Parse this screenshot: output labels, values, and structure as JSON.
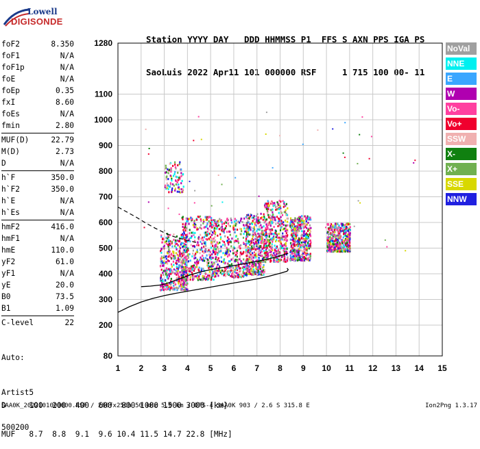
{
  "logo": {
    "line1": "Lowell",
    "line2": "DIGISONDE"
  },
  "header": {
    "row1": "Station YYYY DAY   DDD HHMMSS P1  FFS S AXN PPS IGA PS",
    "row2": "SaoLuis 2022 Apr11 101 000000 RSF     1 715 100 00- 11"
  },
  "params": [
    {
      "k": "foF2",
      "v": "8.350"
    },
    {
      "k": "foF1",
      "v": "N/A"
    },
    {
      "k": "foF1p",
      "v": "N/A"
    },
    {
      "k": "foE",
      "v": "N/A"
    },
    {
      "k": "foEp",
      "v": "0.35"
    },
    {
      "k": "fxI",
      "v": "8.60"
    },
    {
      "k": "foEs",
      "v": "N/A"
    },
    {
      "k": "fmin",
      "v": "2.80"
    },
    {
      "k": "MUF(D)",
      "v": "22.79",
      "sep": true
    },
    {
      "k": "M(D)",
      "v": "2.73"
    },
    {
      "k": "D",
      "v": "N/A"
    },
    {
      "k": "h`F",
      "v": "350.0",
      "sep": true
    },
    {
      "k": "h`F2",
      "v": "350.0"
    },
    {
      "k": "h`E",
      "v": "N/A"
    },
    {
      "k": "h`Es",
      "v": "N/A"
    },
    {
      "k": "hmF2",
      "v": "416.0",
      "sep": true
    },
    {
      "k": "hmF1",
      "v": "N/A"
    },
    {
      "k": "hmE",
      "v": "110.0"
    },
    {
      "k": "yF2",
      "v": "61.0"
    },
    {
      "k": "yF1",
      "v": "N/A"
    },
    {
      "k": "yE",
      "v": "20.0"
    },
    {
      "k": "B0",
      "v": "73.5"
    },
    {
      "k": "B1",
      "v": "1.09"
    },
    {
      "k": "C-level",
      "v": "22",
      "sep": true
    }
  ],
  "sidefoot": {
    "l1": "Auto:",
    "l2": "Artist5",
    "l3": "500200"
  },
  "legend": [
    {
      "label": "NoVal",
      "color": "#a0a0a0"
    },
    {
      "label": "NNE",
      "color": "#00f0f0"
    },
    {
      "label": "E",
      "color": "#3aa6ff"
    },
    {
      "label": "W",
      "color": "#b000b0"
    },
    {
      "label": "Vo-",
      "color": "#ff40a0"
    },
    {
      "label": "Vo+",
      "color": "#f0002e"
    },
    {
      "label": "SSW",
      "color": "#f0b0b0"
    },
    {
      "label": "X-",
      "color": "#108010"
    },
    {
      "label": "X+",
      "color": "#70b050"
    },
    {
      "label": "SSE",
      "color": "#d8d800"
    },
    {
      "label": "NNW",
      "color": "#2020e0"
    }
  ],
  "dtable": {
    "row1": "D     100  200  400  600  800 1000 1500 3000 [km]",
    "row2": "MUF   8.7  8.8  9.1  9.6 10.4 11.5 14.7 22.8 [MHz]"
  },
  "footer": "SAA0K_2022101000000.RSF / 280fx256h 50 kHz 5.0 km / DPS-4 SAA0K 903 / 2.6 S 315.8 E",
  "version": "Ion2Png 1.3.17",
  "chart_data": {
    "type": "scatter",
    "title": "",
    "xlabel": "",
    "ylabel": "",
    "x_ticks": [
      1,
      2,
      3,
      4,
      5,
      6,
      7,
      8,
      9,
      10,
      11,
      12,
      13,
      14,
      15
    ],
    "y_ticks": [
      80,
      200,
      300,
      400,
      500,
      600,
      700,
      800,
      900,
      1000,
      1100,
      1280
    ],
    "xlim": [
      1,
      15
    ],
    "ylim": [
      80,
      1280
    ],
    "grid": true,
    "clusters": [
      {
        "fmin": 2.8,
        "fmax": 4.0,
        "hmin": 340,
        "hmax": 560
      },
      {
        "fmin": 3.7,
        "fmax": 5.2,
        "hmin": 380,
        "hmax": 630
      },
      {
        "fmin": 5.0,
        "fmax": 6.6,
        "hmin": 390,
        "hmax": 620
      },
      {
        "fmin": 6.5,
        "fmax": 7.3,
        "hmin": 400,
        "hmax": 640
      },
      {
        "fmin": 7.3,
        "fmax": 8.3,
        "hmin": 450,
        "hmax": 690
      },
      {
        "fmin": 8.4,
        "fmax": 9.3,
        "hmin": 455,
        "hmax": 630
      },
      {
        "fmin": 10.0,
        "fmax": 11.0,
        "hmin": 490,
        "hmax": 600
      },
      {
        "fmin": 3.0,
        "fmax": 3.8,
        "hmin": 720,
        "hmax": 840
      }
    ],
    "trace": {
      "f": [
        2.0,
        2.4,
        2.8,
        3.1,
        3.4,
        3.8,
        4.2,
        4.6,
        5.0,
        5.5,
        6.0,
        6.5,
        7.0,
        7.5,
        8.0,
        8.35
      ],
      "h": [
        350,
        352,
        356,
        362,
        372,
        385,
        398,
        408,
        416,
        424,
        432,
        440,
        448,
        458,
        470,
        480
      ]
    },
    "profile": {
      "f": [
        1.0,
        1.5,
        2.0,
        2.5,
        3.0,
        3.5,
        4.0,
        4.5,
        5.0,
        5.5,
        6.0,
        6.5,
        7.0,
        7.5,
        8.0,
        8.3,
        8.35,
        8.3
      ],
      "h": [
        250,
        272,
        290,
        304,
        315,
        324,
        332,
        340,
        348,
        356,
        364,
        372,
        380,
        390,
        402,
        410,
        416,
        422
      ]
    },
    "profile_ext": {
      "f": [
        1.0,
        1.4,
        1.8,
        2.2,
        2.6,
        3.0,
        3.4,
        3.9,
        4.4
      ],
      "h": [
        660,
        640,
        620,
        598,
        578,
        560,
        545,
        532,
        522
      ]
    }
  }
}
